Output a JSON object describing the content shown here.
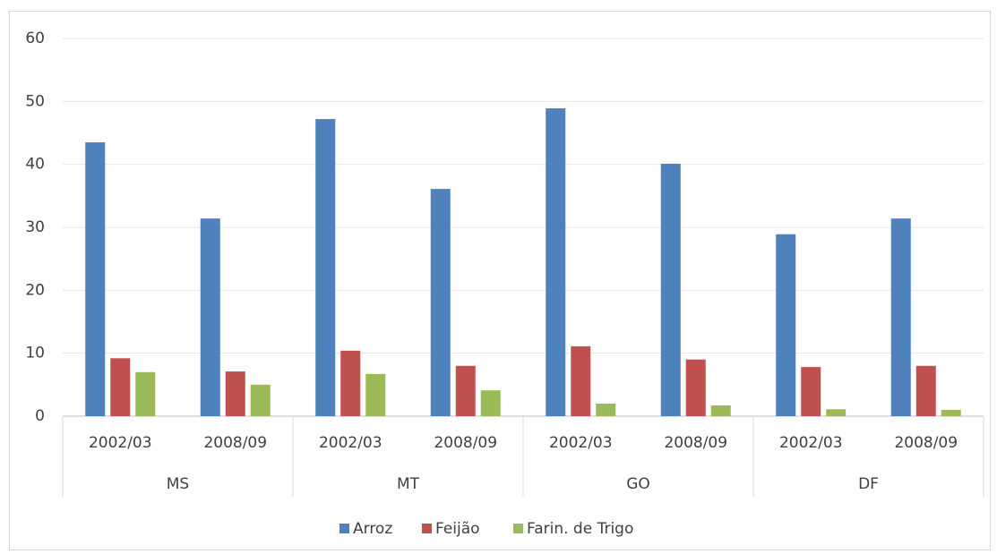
{
  "chart_data": {
    "type": "bar",
    "categories": [
      "2002/03",
      "2008/09",
      "2002/03",
      "2008/09",
      "2002/03",
      "2008/09",
      "2002/03",
      "2008/09"
    ],
    "groups": [
      "MS",
      "MT",
      "GO",
      "DF"
    ],
    "series": [
      {
        "name": "Arroz",
        "color": "#4f81bd",
        "values": [
          43.5,
          31.4,
          47.2,
          36.1,
          48.9,
          40.1,
          28.9,
          31.4
        ]
      },
      {
        "name": "Feijão",
        "color": "#c0504d",
        "values": [
          9.2,
          7.1,
          10.4,
          8.0,
          11.1,
          9.0,
          7.8,
          8.0
        ]
      },
      {
        "name": "Farin. de Trigo",
        "color": "#9bbb59",
        "values": [
          7.0,
          5.0,
          6.7,
          4.1,
          2.0,
          1.7,
          1.1,
          1.0
        ]
      }
    ],
    "ylim": [
      0,
      60
    ],
    "yticks": [
      0,
      10,
      20,
      30,
      40,
      50,
      60
    ],
    "grid": true,
    "legend": "bottom"
  }
}
